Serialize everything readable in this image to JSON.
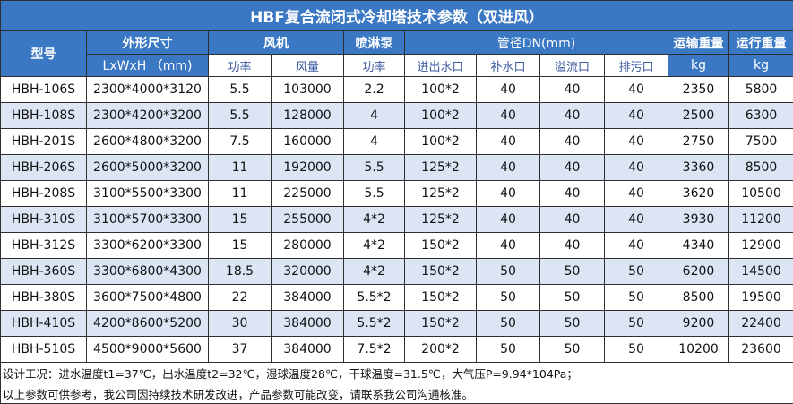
{
  "title": "HBF复合流闭式冷却塔技术参数（双进风）",
  "headers": {
    "model": "型号",
    "dimensions": "外形尺寸",
    "dimensions_unit": "LxWxH （mm)",
    "fan": "风机",
    "fan_power": "功率",
    "fan_airflow": "风量",
    "spray_pump": "喷淋泵",
    "pump_power": "功率",
    "pipe_dn": "管径DN(mm)",
    "inlet_outlet": "进出水口",
    "makeup": "补水口",
    "overflow": "溢流口",
    "drain": "排污口",
    "shipping_weight": "运输重量",
    "shipping_unit": "kg",
    "operating_weight": "运行重量",
    "operating_unit": "kg"
  },
  "rows": [
    {
      "model": "HBH-106S",
      "dim": "2300*4000*3120",
      "fan_power": "5.5",
      "airflow": "103000",
      "pump": "2.2",
      "inlet": "100*2",
      "makeup": "40",
      "overflow": "40",
      "drain": "40",
      "ship": "2350",
      "oper": "5800"
    },
    {
      "model": "HBH-108S",
      "dim": "2300*4200*3200",
      "fan_power": "5.5",
      "airflow": "128000",
      "pump": "4",
      "inlet": "100*2",
      "makeup": "40",
      "overflow": "40",
      "drain": "40",
      "ship": "2500",
      "oper": "6300"
    },
    {
      "model": "HBH-201S",
      "dim": "2600*4800*3200",
      "fan_power": "7.5",
      "airflow": "160000",
      "pump": "4",
      "inlet": "100*2",
      "makeup": "40",
      "overflow": "40",
      "drain": "40",
      "ship": "2750",
      "oper": "7500"
    },
    {
      "model": "HBH-206S",
      "dim": "2600*5000*3200",
      "fan_power": "11",
      "airflow": "192000",
      "pump": "5.5",
      "inlet": "125*2",
      "makeup": "40",
      "overflow": "40",
      "drain": "40",
      "ship": "3360",
      "oper": "8500"
    },
    {
      "model": "HBH-208S",
      "dim": "3100*5500*3300",
      "fan_power": "11",
      "airflow": "225000",
      "pump": "5.5",
      "inlet": "125*2",
      "makeup": "40",
      "overflow": "40",
      "drain": "40",
      "ship": "3620",
      "oper": "10500"
    },
    {
      "model": "HBH-310S",
      "dim": "3100*5700*3300",
      "fan_power": "15",
      "airflow": "255000",
      "pump": "4*2",
      "inlet": "125*2",
      "makeup": "40",
      "overflow": "40",
      "drain": "40",
      "ship": "3930",
      "oper": "11200"
    },
    {
      "model": "HBH-312S",
      "dim": "3300*6200*3300",
      "fan_power": "15",
      "airflow": "280000",
      "pump": "4*2",
      "inlet": "150*2",
      "makeup": "40",
      "overflow": "40",
      "drain": "40",
      "ship": "4340",
      "oper": "12900"
    },
    {
      "model": "HBH-360S",
      "dim": "3300*6800*4300",
      "fan_power": "18.5",
      "airflow": "320000",
      "pump": "4*2",
      "inlet": "150*2",
      "makeup": "50",
      "overflow": "50",
      "drain": "50",
      "ship": "6200",
      "oper": "14500"
    },
    {
      "model": "HBH-380S",
      "dim": "3600*7500*4800",
      "fan_power": "22",
      "airflow": "384000",
      "pump": "5.5*2",
      "inlet": "150*2",
      "makeup": "50",
      "overflow": "50",
      "drain": "50",
      "ship": "8500",
      "oper": "19500"
    },
    {
      "model": "HBH-410S",
      "dim": "4200*8600*5200",
      "fan_power": "30",
      "airflow": "384000",
      "pump": "5.5*2",
      "inlet": "150*2",
      "makeup": "50",
      "overflow": "50",
      "drain": "50",
      "ship": "9200",
      "oper": "22400"
    },
    {
      "model": "HBH-510S",
      "dim": "4500*9000*5600",
      "fan_power": "37",
      "airflow": "384000",
      "pump": "7.5*2",
      "inlet": "200*2",
      "makeup": "50",
      "overflow": "50",
      "drain": "50",
      "ship": "10200",
      "oper": "23600"
    }
  ],
  "notes": [
    "设计工况：进水温度t1=37℃，出水温度t2=32℃，湿球温度28℃，干球温度=31.5℃，大气压P=9.94*104Pa；",
    "以上参数可供参考，我公司因持续技术研发改进，产品参数可能改变，请联系我公司沟通核准。"
  ],
  "colors": {
    "header_bg": "#3b78c4",
    "alt_row_bg": "#dbe5f4"
  }
}
